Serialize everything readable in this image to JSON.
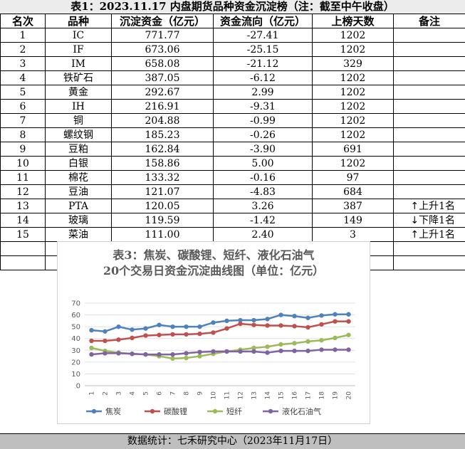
{
  "title": "表1：2023.11.17 内盘期货品种资金沉淀榜（注：截至中午收盘）",
  "headers": [
    "名次",
    "品种",
    "沉淀资金（亿元）",
    "资金流向（亿元）",
    "上榜天数",
    "备注"
  ],
  "rows": [
    {
      "rank": "1",
      "name": "IC",
      "amount": "771.77",
      "flow": "-27.41",
      "days": "1202",
      "note": ""
    },
    {
      "rank": "2",
      "name": "IF",
      "amount": "673.06",
      "flow": "-25.15",
      "days": "1202",
      "note": ""
    },
    {
      "rank": "3",
      "name": "IM",
      "amount": "658.08",
      "flow": "-21.12",
      "days": "329",
      "note": ""
    },
    {
      "rank": "4",
      "name": "铁矿石",
      "amount": "387.05",
      "flow": "-6.12",
      "days": "1202",
      "note": ""
    },
    {
      "rank": "5",
      "name": "黄金",
      "amount": "292.67",
      "flow": "2.99",
      "days": "1202",
      "note": ""
    },
    {
      "rank": "6",
      "name": "IH",
      "amount": "216.91",
      "flow": "-9.31",
      "days": "1202",
      "note": ""
    },
    {
      "rank": "7",
      "name": "铜",
      "amount": "204.88",
      "flow": "-0.99",
      "days": "1202",
      "note": ""
    },
    {
      "rank": "8",
      "name": "螺纹钢",
      "amount": "185.23",
      "flow": "-0.26",
      "days": "1202",
      "note": ""
    },
    {
      "rank": "9",
      "name": "豆粕",
      "amount": "162.84",
      "flow": "-3.90",
      "days": "691",
      "note": ""
    },
    {
      "rank": "10",
      "name": "白银",
      "amount": "158.86",
      "flow": "5.00",
      "days": "1202",
      "note": ""
    },
    {
      "rank": "11",
      "name": "棉花",
      "amount": "133.32",
      "flow": "-0.16",
      "days": "97",
      "note": ""
    },
    {
      "rank": "12",
      "name": "豆油",
      "amount": "121.07",
      "flow": "-4.83",
      "days": "684",
      "note": ""
    },
    {
      "rank": "13",
      "name": "PTA",
      "amount": "120.05",
      "flow": "3.26",
      "days": "387",
      "note_arrow": "↑",
      "note": "上升1名"
    },
    {
      "rank": "14",
      "name": "玻璃",
      "amount": "119.59",
      "flow": "-1.42",
      "days": "149",
      "note_arrow": "↓",
      "note": "下降1名"
    },
    {
      "rank": "15",
      "name": "菜油",
      "amount": "111.00",
      "flow": "2.40",
      "days": "3",
      "note_arrow": "↑",
      "note": "上升1名"
    }
  ],
  "footer": "数据统计：七禾研究中心（2023年11月17日）",
  "chart_data": {
    "type": "line",
    "title_line1": "表3：焦炭、碳酸锂、短纤、液化石油气",
    "title_line2": "20个交易日资金沉淀曲线图（单位：亿元）",
    "x": [
      "1",
      "2",
      "3",
      "4",
      "5",
      "6",
      "7",
      "8",
      "9",
      "10",
      "11",
      "12",
      "13",
      "14",
      "15",
      "16",
      "17",
      "18",
      "19",
      "20"
    ],
    "ylim": [
      0,
      70
    ],
    "yticks": [
      0,
      10,
      20,
      30,
      40,
      50,
      60,
      70
    ],
    "grid": true,
    "legend": "bottom",
    "series": [
      {
        "name": "焦炭",
        "color": "#4f81bd",
        "values": [
          47,
          46,
          50,
          47.5,
          48.5,
          51.5,
          50,
          50,
          50,
          53.5,
          55,
          55.5,
          55.5,
          56.5,
          60,
          59,
          57.5,
          59.5,
          60.5,
          60.5
        ]
      },
      {
        "name": "碳酸锂",
        "color": "#c0504d",
        "values": [
          38,
          38,
          39,
          40.5,
          42.5,
          43,
          43.5,
          43.5,
          44,
          45,
          48.5,
          52.5,
          51.5,
          51,
          51,
          50.5,
          49.5,
          52,
          54.5,
          54.5
        ]
      },
      {
        "name": "短纤",
        "color": "#9bbb59",
        "values": [
          32,
          29.5,
          28,
          27,
          26.5,
          25,
          23,
          23.5,
          25,
          27,
          29,
          30.5,
          32,
          33,
          35,
          36,
          37.5,
          38.5,
          40.5,
          43
        ]
      },
      {
        "name": "液化石油气",
        "color": "#8064a2",
        "values": [
          26.5,
          27.5,
          27.5,
          27,
          26.5,
          26.5,
          26.5,
          27.5,
          28.5,
          29,
          29,
          29,
          29,
          28,
          29.5,
          29.5,
          29.5,
          30.5,
          30.5,
          30.5
        ]
      }
    ]
  }
}
